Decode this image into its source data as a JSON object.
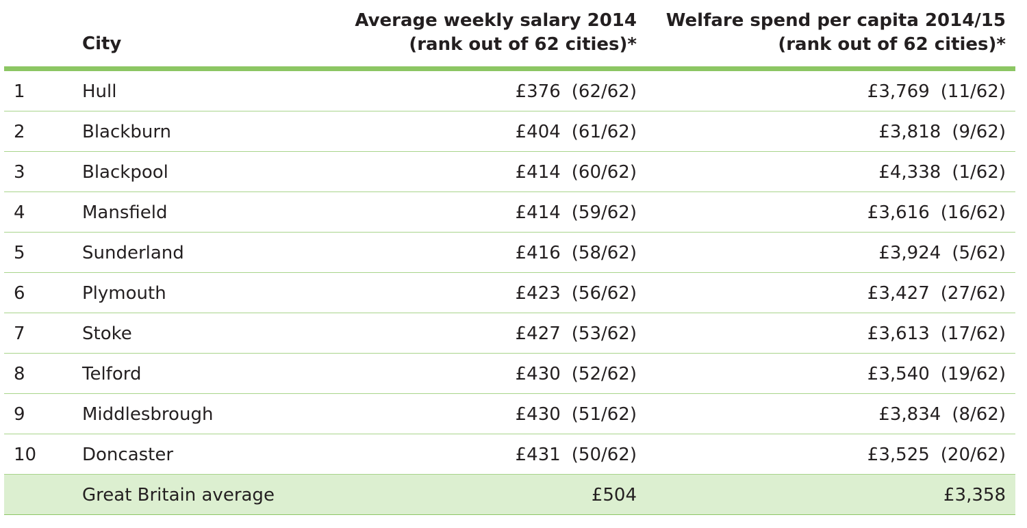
{
  "table": {
    "headers": {
      "city": "City",
      "salary_line1": "Average weekly salary 2014",
      "salary_line2": "(rank out of 62 cities)*",
      "welfare_line1": "Welfare spend per capita 2014/15",
      "welfare_line2": "(rank out of 62 cities)*"
    },
    "rows": [
      {
        "rank": "1",
        "city": "Hull",
        "salary": "£376",
        "salary_rank": "(62/62)",
        "welfare": "£3,769",
        "welfare_rank": "(11/62)"
      },
      {
        "rank": "2",
        "city": "Blackburn",
        "salary": "£404",
        "salary_rank": "(61/62)",
        "welfare": "£3,818",
        "welfare_rank": "(9/62)"
      },
      {
        "rank": "3",
        "city": "Blackpool",
        "salary": "£414",
        "salary_rank": "(60/62)",
        "welfare": "£4,338",
        "welfare_rank": "(1/62)"
      },
      {
        "rank": "4",
        "city": "Mansfield",
        "salary": "£414",
        "salary_rank": "(59/62)",
        "welfare": "£3,616",
        "welfare_rank": "(16/62)"
      },
      {
        "rank": "5",
        "city": "Sunderland",
        "salary": "£416",
        "salary_rank": "(58/62)",
        "welfare": "£3,924",
        "welfare_rank": "(5/62)"
      },
      {
        "rank": "6",
        "city": "Plymouth",
        "salary": "£423",
        "salary_rank": "(56/62)",
        "welfare": "£3,427",
        "welfare_rank": "(27/62)"
      },
      {
        "rank": "7",
        "city": "Stoke",
        "salary": "£427",
        "salary_rank": "(53/62)",
        "welfare": "£3,613",
        "welfare_rank": "(17/62)"
      },
      {
        "rank": "8",
        "city": "Telford",
        "salary": "£430",
        "salary_rank": "(52/62)",
        "welfare": "£3,540",
        "welfare_rank": "(19/62)"
      },
      {
        "rank": "9",
        "city": "Middlesbrough",
        "salary": "£430",
        "salary_rank": "(51/62)",
        "welfare": "£3,834",
        "welfare_rank": "(8/62)"
      },
      {
        "rank": "10",
        "city": "Doncaster",
        "salary": "£431",
        "salary_rank": "(50/62)",
        "welfare": "£3,525",
        "welfare_rank": "(20/62)"
      }
    ],
    "average": {
      "label": "Great Britain average",
      "salary": "£504",
      "welfare": "£3,358"
    }
  },
  "colors": {
    "header_rule": "#8cc663",
    "row_rule": "#a8d48a",
    "average_fill": "#dcefd0",
    "text": "#231f20"
  }
}
